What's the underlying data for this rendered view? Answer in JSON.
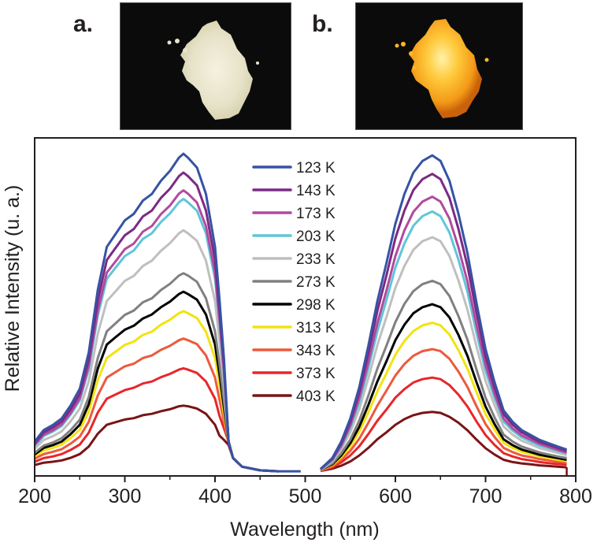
{
  "panels": {
    "a": {
      "label": "a."
    },
    "b": {
      "label": "b."
    }
  },
  "chart_data": {
    "type": "line",
    "title": "",
    "xlabel": "Wavelength (nm)",
    "ylabel": "Relative Intensity (u. a.)",
    "xlim": [
      200,
      800
    ],
    "ylim": [
      -1.4,
      101
    ],
    "xticks": [
      200,
      300,
      400,
      500,
      600,
      700,
      800
    ],
    "xticks_minor": [
      250,
      350,
      450,
      550,
      650,
      750
    ],
    "grid": false,
    "legend_position": "top-center",
    "excitation_x": [
      200,
      210,
      220,
      230,
      240,
      250,
      260,
      270,
      280,
      290,
      300,
      310,
      320,
      330,
      340,
      350,
      360,
      365,
      370,
      380,
      390,
      400,
      405,
      410,
      415,
      420,
      430,
      450,
      470
    ],
    "emission_x": [
      517,
      530,
      540,
      550,
      560,
      570,
      580,
      590,
      600,
      610,
      620,
      630,
      641,
      650,
      660,
      670,
      680,
      690,
      700,
      710,
      720,
      730,
      740,
      750,
      760,
      770,
      780,
      790
    ],
    "series": [
      {
        "name": "123 K",
        "color": "#3653a4",
        "excitation": [
          9,
          12.5,
          14,
          16,
          20,
          25,
          36,
          55,
          68,
          72,
          76,
          78,
          82,
          84,
          88,
          91,
          95,
          96.2,
          95,
          92,
          84,
          68,
          52,
          34,
          9,
          4,
          1.4,
          0.3,
          0
        ],
        "excitation_extend_to": 495,
        "emission": [
          0.7,
          4,
          9,
          16,
          25.5,
          38,
          51.5,
          63,
          75,
          84,
          90.5,
          94,
          95.7,
          94,
          88,
          78,
          66,
          51,
          37,
          27,
          18.4,
          15,
          12.5,
          11,
          9.5,
          8.5,
          7.5,
          6.6
        ]
      },
      {
        "name": "143 K",
        "color": "#7b2a84",
        "excitation": [
          8.5,
          11.8,
          13.2,
          15.1,
          18.8,
          23.5,
          33.9,
          51.8,
          64,
          67.8,
          71.5,
          73.4,
          77.2,
          79,
          82.8,
          85.6,
          89.4,
          90.5,
          89.4,
          86.6,
          79,
          64,
          48.9,
          32,
          9,
          4,
          1.4,
          0.3,
          0
        ],
        "emission": [
          0.7,
          3.8,
          8.5,
          15.1,
          24,
          35.8,
          48.5,
          59.3,
          70.6,
          79,
          85.2,
          88.5,
          90.1,
          88.5,
          82.8,
          73.4,
          62.1,
          48,
          34.8,
          25.4,
          17.3,
          14.1,
          11.8,
          10.4,
          8.9,
          8,
          7.1,
          6.2
        ]
      },
      {
        "name": "173 K",
        "color": "#b14a9f",
        "excitation": [
          8,
          11.1,
          12.4,
          14.2,
          17.7,
          22.1,
          31.9,
          48.7,
          60.2,
          63.7,
          67.3,
          69,
          72.6,
          74.3,
          77.9,
          80.5,
          84.1,
          85.1,
          84.1,
          81.4,
          74.3,
          60.2,
          46,
          30.1,
          9,
          4,
          1.4,
          0.3,
          0
        ],
        "emission": [
          0.6,
          3.5,
          7.8,
          13.9,
          22.2,
          33,
          44.8,
          54.7,
          65.2,
          73,
          78.6,
          81.7,
          83.2,
          81.7,
          76.5,
          67.8,
          57.4,
          44.3,
          32.2,
          23.5,
          16,
          13,
          10.9,
          9.6,
          8.3,
          7.4,
          6.5,
          5.7
        ]
      },
      {
        "name": "203 K",
        "color": "#5fc6d8",
        "excitation": [
          7.7,
          10.7,
          12,
          13.7,
          17.2,
          21.5,
          30.9,
          47.2,
          58.3,
          61.8,
          65.2,
          66.9,
          70.4,
          72.1,
          75.5,
          78.1,
          81.5,
          82.5,
          81.5,
          78.9,
          72.1,
          58.3,
          44.6,
          29.2,
          9,
          4,
          1.4,
          0.3,
          0
        ],
        "emission": [
          0.6,
          3.3,
          7.4,
          13.2,
          21,
          31.2,
          42.3,
          51.8,
          61.7,
          69,
          74.4,
          77.3,
          78.7,
          77.3,
          72.3,
          64.1,
          54.3,
          41.9,
          30.4,
          22.2,
          15.1,
          12.3,
          10.3,
          9,
          7.8,
          7,
          6.2,
          5.4
        ]
      },
      {
        "name": "233 K",
        "color": "#c0bfbf",
        "excitation": [
          6.8,
          9.5,
          10.6,
          12.1,
          15.2,
          19,
          27.3,
          41.7,
          51.6,
          54.6,
          57.7,
          59.2,
          62.2,
          63.8,
          66.8,
          69.1,
          72.1,
          73,
          72.1,
          69.8,
          63.8,
          51.6,
          39.5,
          25.8,
          9,
          4,
          1.4,
          0.3,
          0
        ],
        "emission": [
          0.5,
          3,
          6.7,
          11.9,
          18.9,
          28.2,
          38.2,
          46.7,
          55.6,
          62.2,
          67.1,
          69.7,
          70.9,
          69.7,
          65.2,
          57.8,
          48.9,
          37.8,
          27.4,
          20,
          13.6,
          11.1,
          9.3,
          8.2,
          7,
          6.3,
          5.6,
          4.9
        ]
      },
      {
        "name": "273 K",
        "color": "#808080",
        "excitation": [
          5.6,
          7.8,
          8.7,
          10,
          12.5,
          15.6,
          22.5,
          34.3,
          42.4,
          44.9,
          47.4,
          48.7,
          51.2,
          52.4,
          54.9,
          56.8,
          59.3,
          60,
          59.3,
          57.4,
          52.4,
          42.4,
          32.4,
          21.2,
          9,
          4,
          1.4,
          0.3,
          0
        ],
        "emission": [
          0.4,
          2.4,
          5.4,
          9.6,
          15.4,
          22.9,
          31.1,
          38,
          45.2,
          50.7,
          54.6,
          56.7,
          57.7,
          56.7,
          53.1,
          47,
          39.8,
          30.8,
          22.3,
          16.3,
          11.1,
          9,
          7.5,
          6.6,
          5.7,
          5.1,
          4.5,
          4
        ]
      },
      {
        "name": "298 K",
        "color": "#000000",
        "excitation": [
          5.1,
          7.1,
          7.9,
          9,
          11.3,
          14.1,
          20.3,
          31.1,
          38.4,
          40.7,
          42.9,
          44.1,
          46.3,
          47.5,
          49.7,
          51.4,
          53.7,
          54.4,
          53.7,
          52,
          47.5,
          38.4,
          29.4,
          19.2,
          9,
          4,
          1.4,
          0.3,
          0
        ],
        "emission": [
          0.4,
          2.1,
          4.8,
          8.5,
          13.5,
          20.1,
          27.2,
          33.3,
          39.7,
          44.4,
          47.9,
          49.7,
          50.6,
          49.7,
          46.6,
          41.3,
          34.9,
          27,
          19.6,
          14.3,
          9.7,
          7.9,
          6.6,
          5.8,
          5,
          4.5,
          4,
          3.5
        ]
      },
      {
        "name": "313 K",
        "color": "#f2e30f",
        "excitation": [
          4.5,
          6.3,
          7.1,
          8.1,
          10.1,
          12.6,
          18.1,
          27.7,
          34.3,
          36.3,
          38.3,
          39.3,
          41.3,
          42.3,
          44.4,
          45.9,
          47.9,
          48.5,
          47.9,
          46.4,
          42.3,
          34.3,
          26.2,
          17.1,
          9,
          4,
          1.4,
          0.3,
          0
        ],
        "emission": [
          0.3,
          1.9,
          4.2,
          7.5,
          12,
          17.9,
          24.2,
          29.6,
          35.3,
          39.5,
          42.5,
          44.2,
          45,
          44.2,
          41.4,
          36.7,
          31,
          24,
          17.4,
          12.7,
          8.6,
          7.1,
          5.9,
          5.2,
          4.5,
          4,
          3.5,
          3.1
        ]
      },
      {
        "name": "343 K",
        "color": "#ec5a3c",
        "excitation": [
          3.8,
          5.2,
          5.9,
          6.7,
          8.4,
          10.5,
          15,
          23,
          28.4,
          30.1,
          31.8,
          32.6,
          34.3,
          35.1,
          36.8,
          38,
          39.7,
          40.2,
          39.7,
          38.5,
          35.1,
          28.4,
          21.7,
          15,
          9,
          4,
          1.4,
          0.3,
          0
        ],
        "emission": [
          0.3,
          1.5,
          3.5,
          6.2,
          9.9,
          14.7,
          19.9,
          24.4,
          29,
          32.5,
          35,
          36.4,
          37,
          36.4,
          34.1,
          30.2,
          25.5,
          19.7,
          14.3,
          10.4,
          7.1,
          5.8,
          4.8,
          4.3,
          3.7,
          3.3,
          2.9,
          2.6
        ]
      },
      {
        "name": "373 K",
        "color": "#e8262a",
        "excitation": [
          2.9,
          4,
          4.5,
          5.2,
          6.5,
          8.1,
          11.7,
          17.8,
          22,
          23.3,
          24.6,
          25.3,
          26.6,
          27.2,
          28.5,
          29.5,
          30.8,
          31.2,
          30.8,
          29.8,
          27.2,
          22,
          16.8,
          13,
          9,
          4,
          1.4,
          0.3,
          0
        ],
        "emission": [
          0.2,
          1.2,
          2.7,
          4.8,
          7.6,
          11.3,
          15.3,
          18.7,
          22.3,
          24.9,
          26.9,
          27.9,
          28.4,
          27.9,
          26.1,
          23.2,
          19.6,
          15.1,
          11,
          8,
          5.5,
          4.5,
          3.7,
          3.3,
          2.8,
          2.5,
          2.2,
          2
        ]
      },
      {
        "name": "403 K",
        "color": "#7a1416",
        "excitation": [
          1.9,
          2.6,
          2.9,
          3.3,
          4.1,
          5.2,
          7.5,
          11.4,
          14.1,
          14.9,
          15.7,
          16.1,
          17,
          17.4,
          18.2,
          18.8,
          19.7,
          19.9,
          19.7,
          19,
          17.4,
          14.1,
          10.8,
          9.5,
          8,
          4,
          1.4,
          0.3,
          0
        ],
        "emission": [
          0.1,
          0.8,
          1.7,
          3,
          4.8,
          7.1,
          9.7,
          11.8,
          14.1,
          15.8,
          17,
          17.7,
          18,
          17.7,
          16.5,
          14.7,
          12.4,
          9.6,
          7,
          5.1,
          3.5,
          2.8,
          2.4,
          2.1,
          1.8,
          1.6,
          1.4,
          1.2
        ]
      }
    ]
  }
}
